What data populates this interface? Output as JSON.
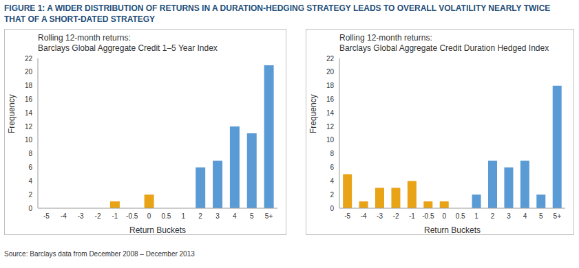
{
  "title": "FIGURE 1: A WIDER DISTRIBUTION OF RETURNS IN A DURATION-HEDGING STRATEGY LEADS TO OVERALL VOLATILITY NEARLY TWICE THAT OF A SHORT-DATED STRATEGY",
  "source": "Source: Barclays data from December 2008 – December 2013",
  "chart_data": [
    {
      "type": "bar",
      "title": "Rolling 12-month returns:",
      "subtitle": "Barclays Global Aggregate Credit 1–5 Year Index",
      "x_label": "Return Buckets",
      "y_label": "Frequency",
      "categories": [
        "-5",
        "-4",
        "-3",
        "-2",
        "-1",
        "-0.5",
        "0",
        "0.5",
        "1",
        "2",
        "3",
        "4",
        "5",
        "5+"
      ],
      "values": [
        0,
        0,
        0,
        0,
        1,
        0,
        2,
        0,
        0,
        6,
        7,
        12,
        11,
        21
      ],
      "colors": [
        "#e8a317",
        "#e8a317",
        "#e8a317",
        "#e8a317",
        "#e8a317",
        "#e8a317",
        "#e8a317",
        "#5b9bd5",
        "#5b9bd5",
        "#5b9bd5",
        "#5b9bd5",
        "#5b9bd5",
        "#5b9bd5",
        "#5b9bd5"
      ],
      "ylim": [
        0,
        22
      ],
      "yticks": [
        0,
        2,
        4,
        6,
        8,
        10,
        12,
        14,
        16,
        18,
        20,
        22
      ],
      "grid": false
    },
    {
      "type": "bar",
      "title": "Rolling 12-month returns:",
      "subtitle": "Barclays Global Aggregate Credit Duration Hedged Index",
      "x_label": "Return Buckets",
      "y_label": "Frequency",
      "categories": [
        "-5",
        "-4",
        "-3",
        "-2",
        "-1",
        "-0.5",
        "0",
        "0.5",
        "1",
        "2",
        "3",
        "4",
        "5",
        "5+"
      ],
      "values": [
        5,
        1,
        3,
        3,
        4,
        1,
        1,
        0,
        2,
        7,
        6,
        7,
        2,
        18
      ],
      "colors": [
        "#e8a317",
        "#e8a317",
        "#e8a317",
        "#e8a317",
        "#e8a317",
        "#e8a317",
        "#e8a317",
        "#5b9bd5",
        "#5b9bd5",
        "#5b9bd5",
        "#5b9bd5",
        "#5b9bd5",
        "#5b9bd5",
        "#5b9bd5"
      ],
      "ylim": [
        0,
        22
      ],
      "yticks": [
        0,
        2,
        4,
        6,
        8,
        10,
        12,
        14,
        16,
        18,
        20,
        22
      ],
      "grid": false
    }
  ]
}
